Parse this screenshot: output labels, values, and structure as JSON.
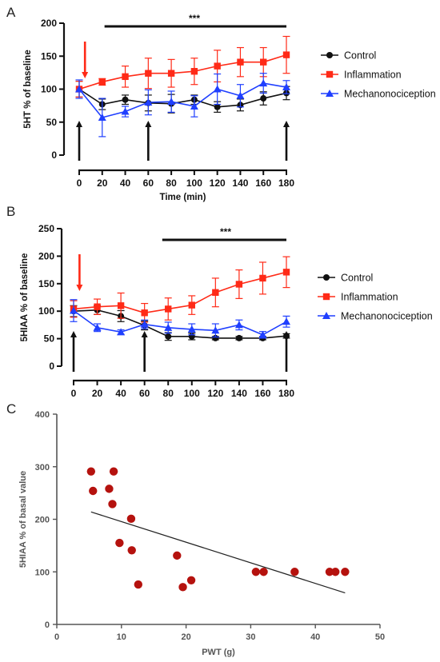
{
  "panels": {
    "a": {
      "letter": "A"
    },
    "b": {
      "letter": "B"
    },
    "c": {
      "letter": "C"
    }
  },
  "chart_data": [
    {
      "type": "line",
      "panel": "A",
      "xlabel": "Time (min)",
      "ylabel": "5HT % of baseline",
      "xlim": [
        0,
        180
      ],
      "ylim": [
        0,
        200
      ],
      "xticks": [
        0,
        20,
        40,
        60,
        80,
        100,
        120,
        140,
        160,
        180
      ],
      "yticks": [
        0,
        50,
        100,
        150,
        200
      ],
      "x": [
        0,
        20,
        40,
        60,
        80,
        100,
        120,
        140,
        160,
        180
      ],
      "series": [
        {
          "name": "Control",
          "color": "#111111",
          "marker": "circle",
          "values": [
            100,
            77,
            84,
            79,
            78,
            84,
            73,
            76,
            86,
            94
          ],
          "errors": [
            12,
            8,
            7,
            12,
            14,
            7,
            8,
            9,
            10,
            10
          ]
        },
        {
          "name": "Inflammation",
          "color": "#ff2a17",
          "marker": "square",
          "values": [
            100,
            111,
            119,
            124,
            124,
            127,
            135,
            141,
            141,
            152
          ],
          "errors": [
            12,
            5,
            16,
            23,
            21,
            20,
            24,
            22,
            22,
            28
          ]
        },
        {
          "name": "Mechanonociception",
          "color": "#1f3fff",
          "marker": "triangle",
          "values": [
            100,
            57,
            66,
            80,
            81,
            74,
            100,
            90,
            109,
            103
          ],
          "errors": [
            14,
            29,
            8,
            19,
            16,
            16,
            23,
            17,
            15,
            10
          ]
        }
      ],
      "significance": {
        "label": "***",
        "from": 22,
        "to": 180
      },
      "stimulus_arrow": {
        "at": 5,
        "color": "#ff2a17"
      },
      "time_arrows": [
        0,
        60,
        180
      ],
      "legend_position": "right"
    },
    {
      "type": "line",
      "panel": "B",
      "xlabel": "",
      "ylabel": "5HIAA % of baseline",
      "xlim": [
        0,
        180
      ],
      "ylim": [
        0,
        250
      ],
      "xticks": [
        0,
        20,
        40,
        60,
        80,
        100,
        120,
        140,
        160,
        180
      ],
      "yticks": [
        0,
        50,
        100,
        150,
        200,
        250
      ],
      "x": [
        0,
        20,
        40,
        60,
        80,
        100,
        120,
        140,
        160,
        180
      ],
      "series": [
        {
          "name": "Control",
          "color": "#111111",
          "marker": "circle",
          "values": [
            100,
            102,
            91,
            74,
            54,
            54,
            51,
            51,
            51,
            55
          ],
          "errors": [
            10,
            8,
            10,
            8,
            7,
            6,
            3,
            3,
            3,
            4
          ]
        },
        {
          "name": "Inflammation",
          "color": "#ff2a17",
          "marker": "square",
          "values": [
            104,
            108,
            110,
            97,
            104,
            111,
            134,
            149,
            160,
            171
          ],
          "errors": [
            15,
            14,
            23,
            17,
            20,
            17,
            26,
            26,
            29,
            28
          ]
        },
        {
          "name": "Mechanonociception",
          "color": "#1f3fff",
          "marker": "triangle",
          "values": [
            101,
            70,
            62,
            76,
            70,
            67,
            65,
            75,
            57,
            81
          ],
          "errors": [
            20,
            7,
            4,
            8,
            10,
            10,
            12,
            9,
            6,
            10
          ]
        }
      ],
      "significance": {
        "label": "***",
        "from": 75,
        "to": 180
      },
      "stimulus_arrow": {
        "at": 5,
        "color": "#ff2a17"
      },
      "time_arrows": [
        0,
        60,
        180
      ],
      "legend_position": "right"
    },
    {
      "type": "scatter",
      "panel": "C",
      "xlabel": "PWT (g)",
      "ylabel": "5HIAA % of basal value",
      "xlim": [
        0,
        50
      ],
      "ylim": [
        0,
        400
      ],
      "xticks": [
        0,
        10,
        20,
        30,
        40,
        50
      ],
      "yticks": [
        0,
        100,
        200,
        300,
        400
      ],
      "marker_color": "#b5120e",
      "points": [
        {
          "x": 5.3,
          "y": 291
        },
        {
          "x": 8.8,
          "y": 291
        },
        {
          "x": 5.6,
          "y": 254
        },
        {
          "x": 8.1,
          "y": 258
        },
        {
          "x": 8.6,
          "y": 229
        },
        {
          "x": 11.5,
          "y": 201
        },
        {
          "x": 9.7,
          "y": 155
        },
        {
          "x": 11.6,
          "y": 141
        },
        {
          "x": 18.6,
          "y": 131
        },
        {
          "x": 12.6,
          "y": 76
        },
        {
          "x": 19.5,
          "y": 71
        },
        {
          "x": 20.8,
          "y": 84
        },
        {
          "x": 30.8,
          "y": 100
        },
        {
          "x": 32.0,
          "y": 100
        },
        {
          "x": 36.8,
          "y": 100
        },
        {
          "x": 42.2,
          "y": 100
        },
        {
          "x": 43.1,
          "y": 100
        },
        {
          "x": 44.6,
          "y": 100
        }
      ],
      "fit_line": {
        "x": [
          5.3,
          44.6
        ],
        "y": [
          214,
          60
        ]
      }
    }
  ]
}
